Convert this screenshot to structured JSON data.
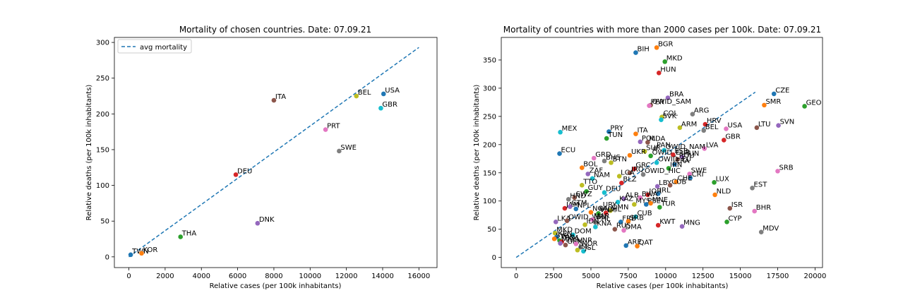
{
  "palette": [
    "#1f77b4",
    "#ff7f0e",
    "#2ca02c",
    "#d62728",
    "#9467bd",
    "#8c564b",
    "#e377c2",
    "#7f7f7f",
    "#bcbd22",
    "#17becf"
  ],
  "chart_data": [
    {
      "type": "scatter",
      "title": "Mortality of chosen countries. Date: 07.09.21",
      "xlabel": "Relative cases (per 100k inhabitants)",
      "ylabel": "Relative deaths (per 100k inhabitants)",
      "xlim": [
        -800,
        17000
      ],
      "ylim": [
        -15,
        307
      ],
      "xticks": [
        0,
        2000,
        4000,
        6000,
        8000,
        10000,
        12000,
        14000,
        16000
      ],
      "yticks": [
        0,
        50,
        100,
        150,
        200,
        250,
        300
      ],
      "grid": false,
      "legend": {
        "position": "top-left",
        "entries": [
          {
            "label": "avg mortality",
            "style": "dashed",
            "color": "#1f77b4"
          }
        ]
      },
      "trend_line": {
        "name": "avg mortality",
        "x": [
          0,
          16000
        ],
        "y": [
          0,
          293
        ]
      },
      "points": [
        {
          "label": "TWN",
          "x": 100,
          "y": 3
        },
        {
          "label": "KOR",
          "x": 700,
          "y": 5
        },
        {
          "label": "THA",
          "x": 2850,
          "y": 28
        },
        {
          "label": "DEU",
          "x": 5900,
          "y": 115
        },
        {
          "label": "DNK",
          "x": 7100,
          "y": 47
        },
        {
          "label": "ITA",
          "x": 8000,
          "y": 219
        },
        {
          "label": "PRT",
          "x": 10850,
          "y": 178
        },
        {
          "label": "SWE",
          "x": 11600,
          "y": 148
        },
        {
          "label": "BEL",
          "x": 12550,
          "y": 225
        },
        {
          "label": "GBR",
          "x": 13900,
          "y": 208
        },
        {
          "label": "USA",
          "x": 14050,
          "y": 228
        }
      ]
    },
    {
      "type": "scatter",
      "title": "Mortality of countries with more than 2000 cases per 100k. Date: 07.09.21",
      "xlabel": "Relative cases (per 100k inhabitants)",
      "ylabel": "Relative deaths (per 100k inhabitants)",
      "xlim": [
        -1000,
        20500
      ],
      "ylim": [
        -18,
        390
      ],
      "xticks": [
        0,
        2500,
        5000,
        7500,
        10000,
        12500,
        15000,
        17500,
        20000
      ],
      "yticks": [
        0,
        50,
        100,
        150,
        200,
        250,
        300,
        350
      ],
      "grid": false,
      "trend_line": {
        "x": [
          0,
          16000
        ],
        "y": [
          0,
          293
        ]
      },
      "points": [
        {
          "label": "BIH",
          "x": 8000,
          "y": 363
        },
        {
          "label": "BGR",
          "x": 9400,
          "y": 372
        },
        {
          "label": "MKD",
          "x": 9950,
          "y": 347
        },
        {
          "label": "HUN",
          "x": 9550,
          "y": 327
        },
        {
          "label": "BRA",
          "x": 10150,
          "y": 283
        },
        {
          "label": "OWID_SAM",
          "x": 9000,
          "y": 270
        },
        {
          "label": "PER",
          "x": 8900,
          "y": 269
        },
        {
          "label": "ARG",
          "x": 11800,
          "y": 254
        },
        {
          "label": "COL",
          "x": 9750,
          "y": 249
        },
        {
          "label": "SVK",
          "x": 9700,
          "y": 244
        },
        {
          "label": "CZE",
          "x": 17250,
          "y": 290
        },
        {
          "label": "SMR",
          "x": 16600,
          "y": 270
        },
        {
          "label": "GEO",
          "x": 19300,
          "y": 268
        },
        {
          "label": "HRV",
          "x": 12650,
          "y": 236
        },
        {
          "label": "SVN",
          "x": 17550,
          "y": 234
        },
        {
          "label": "LTU",
          "x": 16100,
          "y": 230
        },
        {
          "label": "USA",
          "x": 14050,
          "y": 228
        },
        {
          "label": "BEL",
          "x": 12550,
          "y": 225
        },
        {
          "label": "ARM",
          "x": 10950,
          "y": 230
        },
        {
          "label": "MEX",
          "x": 2950,
          "y": 222
        },
        {
          "label": "PRY",
          "x": 6200,
          "y": 223
        },
        {
          "label": "ITA",
          "x": 8000,
          "y": 219
        },
        {
          "label": "TUN",
          "x": 6050,
          "y": 211
        },
        {
          "label": "GBR",
          "x": 13900,
          "y": 208
        },
        {
          "label": "POL",
          "x": 8300,
          "y": 205
        },
        {
          "label": "MDA",
          "x": 8800,
          "y": 204
        },
        {
          "label": "LVA",
          "x": 12600,
          "y": 193
        },
        {
          "label": "PAN",
          "x": 9300,
          "y": 193
        },
        {
          "label": "SUR",
          "x": 8600,
          "y": 188
        },
        {
          "label": "OWID_NAM",
          "x": 9900,
          "y": 190
        },
        {
          "label": "ECU",
          "x": 2900,
          "y": 184
        },
        {
          "label": "UKR",
          "x": 7600,
          "y": 181
        },
        {
          "label": "OWID_EUR",
          "x": 9000,
          "y": 180
        },
        {
          "label": "ESP",
          "x": 10500,
          "y": 182
        },
        {
          "label": "HUN2",
          "x": 11100,
          "y": 178
        },
        {
          "label": "ROU",
          "x": 10800,
          "y": 174
        },
        {
          "label": "GRD",
          "x": 5200,
          "y": 176
        },
        {
          "label": "BHS",
          "x": 5900,
          "y": 171
        },
        {
          "label": "BTN",
          "x": 6350,
          "y": 168
        },
        {
          "label": "OWID_EU",
          "x": 9400,
          "y": 168
        },
        {
          "label": "FRA",
          "x": 10600,
          "y": 165
        },
        {
          "label": "BOL",
          "x": 4400,
          "y": 159
        },
        {
          "label": "IRN",
          "x": 10200,
          "y": 158
        },
        {
          "label": "GRC",
          "x": 7900,
          "y": 157
        },
        {
          "label": "ZAF",
          "x": 4800,
          "y": 148
        },
        {
          "label": "IRQ",
          "x": 7600,
          "y": 150
        },
        {
          "label": "SWE",
          "x": 11600,
          "y": 148
        },
        {
          "label": "OWID_HIC",
          "x": 8500,
          "y": 147
        },
        {
          "label": "LCA",
          "x": 6900,
          "y": 144
        },
        {
          "label": "NAM",
          "x": 5100,
          "y": 140
        },
        {
          "label": "CRI",
          "x": 11650,
          "y": 141
        },
        {
          "label": "CHE",
          "x": 10700,
          "y": 134
        },
        {
          "label": "LUX",
          "x": 13250,
          "y": 133
        },
        {
          "label": "BLZ",
          "x": 7050,
          "y": 132
        },
        {
          "label": "LBY",
          "x": 9450,
          "y": 126
        },
        {
          "label": "CUB2",
          "x": 10300,
          "y": 128
        },
        {
          "label": "SRB",
          "x": 17500,
          "y": 153
        },
        {
          "label": "EST",
          "x": 15800,
          "y": 123
        },
        {
          "label": "TTO",
          "x": 4400,
          "y": 128
        },
        {
          "label": "DEU",
          "x": 5900,
          "y": 115
        },
        {
          "label": "IRL",
          "x": 9500,
          "y": 113
        },
        {
          "label": "NLD",
          "x": 13300,
          "y": 111
        },
        {
          "label": "GUY",
          "x": 4700,
          "y": 117
        },
        {
          "label": "JOR",
          "x": 8800,
          "y": 111
        },
        {
          "label": "ALB",
          "x": 7200,
          "y": 104
        },
        {
          "label": "SWZ",
          "x": 3900,
          "y": 106
        },
        {
          "label": "BWA",
          "x": 8300,
          "y": 106
        },
        {
          "label": "HND",
          "x": 3500,
          "y": 103
        },
        {
          "label": "MYS",
          "x": 7900,
          "y": 94
        },
        {
          "label": "KAZ",
          "x": 6800,
          "y": 98
        },
        {
          "label": "PSE",
          "x": 8700,
          "y": 94
        },
        {
          "label": "MNE",
          "x": 9000,
          "y": 96
        },
        {
          "label": "TUR",
          "x": 9600,
          "y": 89
        },
        {
          "label": "JAM",
          "x": 3250,
          "y": 87
        },
        {
          "label": "GTM",
          "x": 3600,
          "y": 90
        },
        {
          "label": "ISR",
          "x": 14300,
          "y": 87
        },
        {
          "label": "BHR",
          "x": 15950,
          "y": 82
        },
        {
          "label": "URY",
          "x": 5700,
          "y": 87
        },
        {
          "label": "OMN",
          "x": 6300,
          "y": 83
        },
        {
          "label": "CUB",
          "x": 8000,
          "y": 72
        },
        {
          "label": "NPL",
          "x": 4000,
          "y": 86
        },
        {
          "label": "NGA",
          "x": 5000,
          "y": 80
        },
        {
          "label": "VNM",
          "x": 5500,
          "y": 78
        },
        {
          "label": "CHL",
          "x": 6000,
          "y": 79
        },
        {
          "label": "LKA",
          "x": 2650,
          "y": 63
        },
        {
          "label": "OWID_WRL",
          "x": 3400,
          "y": 65
        },
        {
          "label": "MAR",
          "x": 5100,
          "y": 67
        },
        {
          "label": "PHL",
          "x": 5300,
          "y": 62
        },
        {
          "label": "IDN",
          "x": 4600,
          "y": 58
        },
        {
          "label": "KNA",
          "x": 5300,
          "y": 54
        },
        {
          "label": "FRB",
          "x": 7000,
          "y": 63
        },
        {
          "label": "SRB2",
          "x": 7500,
          "y": 64
        },
        {
          "label": "CYP",
          "x": 14100,
          "y": 63
        },
        {
          "label": "KWT",
          "x": 9500,
          "y": 57
        },
        {
          "label": "MNG",
          "x": 11100,
          "y": 55
        },
        {
          "label": "RUS",
          "x": 6600,
          "y": 50
        },
        {
          "label": "DMA",
          "x": 7200,
          "y": 48
        },
        {
          "label": "MDV",
          "x": 16400,
          "y": 45
        },
        {
          "label": "MKD2",
          "x": 2600,
          "y": 43
        },
        {
          "label": "DOM",
          "x": 3800,
          "y": 40
        },
        {
          "label": "KEN",
          "x": 2700,
          "y": 36
        },
        {
          "label": "SYC",
          "x": 2550,
          "y": 33
        },
        {
          "label": "PAK",
          "x": 2900,
          "y": 30
        },
        {
          "label": "TKM",
          "x": 3050,
          "y": 28
        },
        {
          "label": "MNG2",
          "x": 2950,
          "y": 25
        },
        {
          "label": "GRN",
          "x": 3300,
          "y": 22
        },
        {
          "label": "VNR",
          "x": 4000,
          "y": 24
        },
        {
          "label": "NOR",
          "x": 4300,
          "y": 18
        },
        {
          "label": "ISL",
          "x": 4100,
          "y": 13
        },
        {
          "label": "JSL",
          "x": 4500,
          "y": 11
        },
        {
          "label": "ARE",
          "x": 7350,
          "y": 21
        },
        {
          "label": "QAT",
          "x": 8100,
          "y": 20
        }
      ]
    }
  ]
}
